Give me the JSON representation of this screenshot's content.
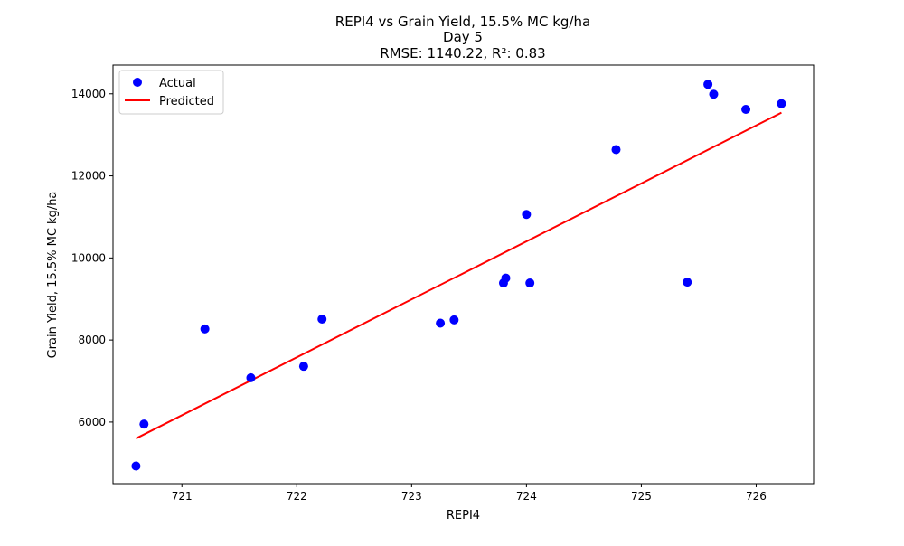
{
  "chart_data": {
    "type": "scatter",
    "title_lines": [
      "REPI4 vs Grain Yield, 15.5% MC kg/ha",
      "Day 5",
      "RMSE: 1140.22, R²: 0.83"
    ],
    "xlabel": "REPI4",
    "ylabel": "Grain Yield, 15.5% MC kg/ha",
    "xlim": [
      720.4,
      726.5
    ],
    "ylim": [
      4500,
      14700
    ],
    "xticks": [
      721,
      722,
      723,
      724,
      725,
      726
    ],
    "yticks": [
      6000,
      8000,
      10000,
      12000,
      14000
    ],
    "legend": {
      "position": "top-left",
      "entries": [
        {
          "label": "Actual",
          "type": "marker",
          "color": "#0000ff"
        },
        {
          "label": "Predicted",
          "type": "line",
          "color": "#ff0000"
        }
      ]
    },
    "series": [
      {
        "name": "Actual",
        "type": "scatter",
        "color": "#0000ff",
        "points": [
          {
            "x": 720.6,
            "y": 4930
          },
          {
            "x": 720.67,
            "y": 5950
          },
          {
            "x": 721.2,
            "y": 8270
          },
          {
            "x": 721.6,
            "y": 7080
          },
          {
            "x": 722.06,
            "y": 7360
          },
          {
            "x": 722.22,
            "y": 8510
          },
          {
            "x": 723.25,
            "y": 8410
          },
          {
            "x": 723.37,
            "y": 8490
          },
          {
            "x": 723.8,
            "y": 9390
          },
          {
            "x": 723.82,
            "y": 9510
          },
          {
            "x": 724.0,
            "y": 11060
          },
          {
            "x": 724.03,
            "y": 9390
          },
          {
            "x": 724.78,
            "y": 12640
          },
          {
            "x": 725.4,
            "y": 9410
          },
          {
            "x": 725.58,
            "y": 14230
          },
          {
            "x": 725.63,
            "y": 13990
          },
          {
            "x": 725.91,
            "y": 13620
          },
          {
            "x": 726.22,
            "y": 13760
          }
        ]
      },
      {
        "name": "Predicted",
        "type": "line",
        "color": "#ff0000",
        "points": [
          {
            "x": 720.6,
            "y": 5600
          },
          {
            "x": 726.22,
            "y": 13540
          }
        ]
      }
    ]
  }
}
